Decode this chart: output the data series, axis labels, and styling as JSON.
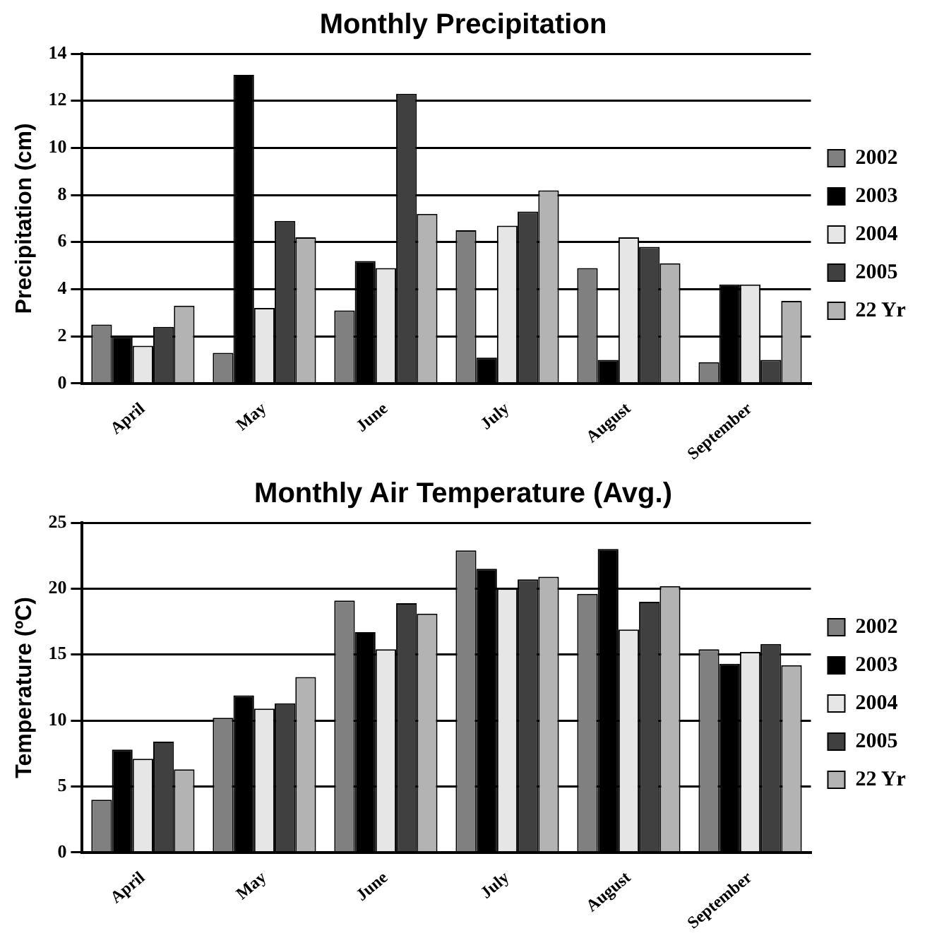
{
  "chart_data": [
    {
      "type": "bar",
      "title": "Monthly Precipitation",
      "ylabel": "Precipitation (cm)",
      "categories": [
        "April",
        "May",
        "June",
        "July",
        "August",
        "September"
      ],
      "ylim": [
        0,
        14
      ],
      "yticks": [
        0,
        2,
        4,
        6,
        8,
        10,
        12,
        14
      ],
      "grid": "y",
      "legend": "right",
      "series": [
        {
          "name": "2002",
          "color": "#808080",
          "values": [
            2.5,
            1.3,
            3.1,
            6.5,
            4.9,
            0.9
          ]
        },
        {
          "name": "2003",
          "color": "#000000",
          "values": [
            2.0,
            13.1,
            5.2,
            1.1,
            1.0,
            4.2
          ]
        },
        {
          "name": "2004",
          "color": "#e6e6e6",
          "values": [
            1.6,
            3.2,
            4.9,
            6.7,
            6.2,
            4.2
          ]
        },
        {
          "name": "2005",
          "color": "#404040",
          "values": [
            2.4,
            6.9,
            12.3,
            7.3,
            5.8,
            1.0
          ]
        },
        {
          "name": "22 Yr",
          "color": "#b3b3b3",
          "values": [
            3.3,
            6.2,
            7.2,
            8.2,
            5.1,
            3.5
          ]
        }
      ]
    },
    {
      "type": "bar",
      "title": "Monthly Air Temperature (Avg.)",
      "ylabel": "Temperature (ºC)",
      "categories": [
        "April",
        "May",
        "June",
        "July",
        "August",
        "September"
      ],
      "ylim": [
        0,
        25
      ],
      "yticks": [
        0,
        5,
        10,
        15,
        20,
        25
      ],
      "grid": "y",
      "legend": "right",
      "series": [
        {
          "name": "2002",
          "color": "#808080",
          "values": [
            4.0,
            10.2,
            19.1,
            22.9,
            19.6,
            15.4
          ]
        },
        {
          "name": "2003",
          "color": "#000000",
          "values": [
            7.8,
            11.9,
            16.7,
            21.5,
            23.0,
            14.3
          ]
        },
        {
          "name": "2004",
          "color": "#e6e6e6",
          "values": [
            7.1,
            10.9,
            15.4,
            20.0,
            16.9,
            15.2
          ]
        },
        {
          "name": "2005",
          "color": "#404040",
          "values": [
            8.4,
            11.3,
            18.9,
            20.7,
            19.0,
            15.8
          ]
        },
        {
          "name": "22 Yr",
          "color": "#b3b3b3",
          "values": [
            6.3,
            13.3,
            18.1,
            20.9,
            20.2,
            14.2
          ]
        }
      ]
    }
  ]
}
